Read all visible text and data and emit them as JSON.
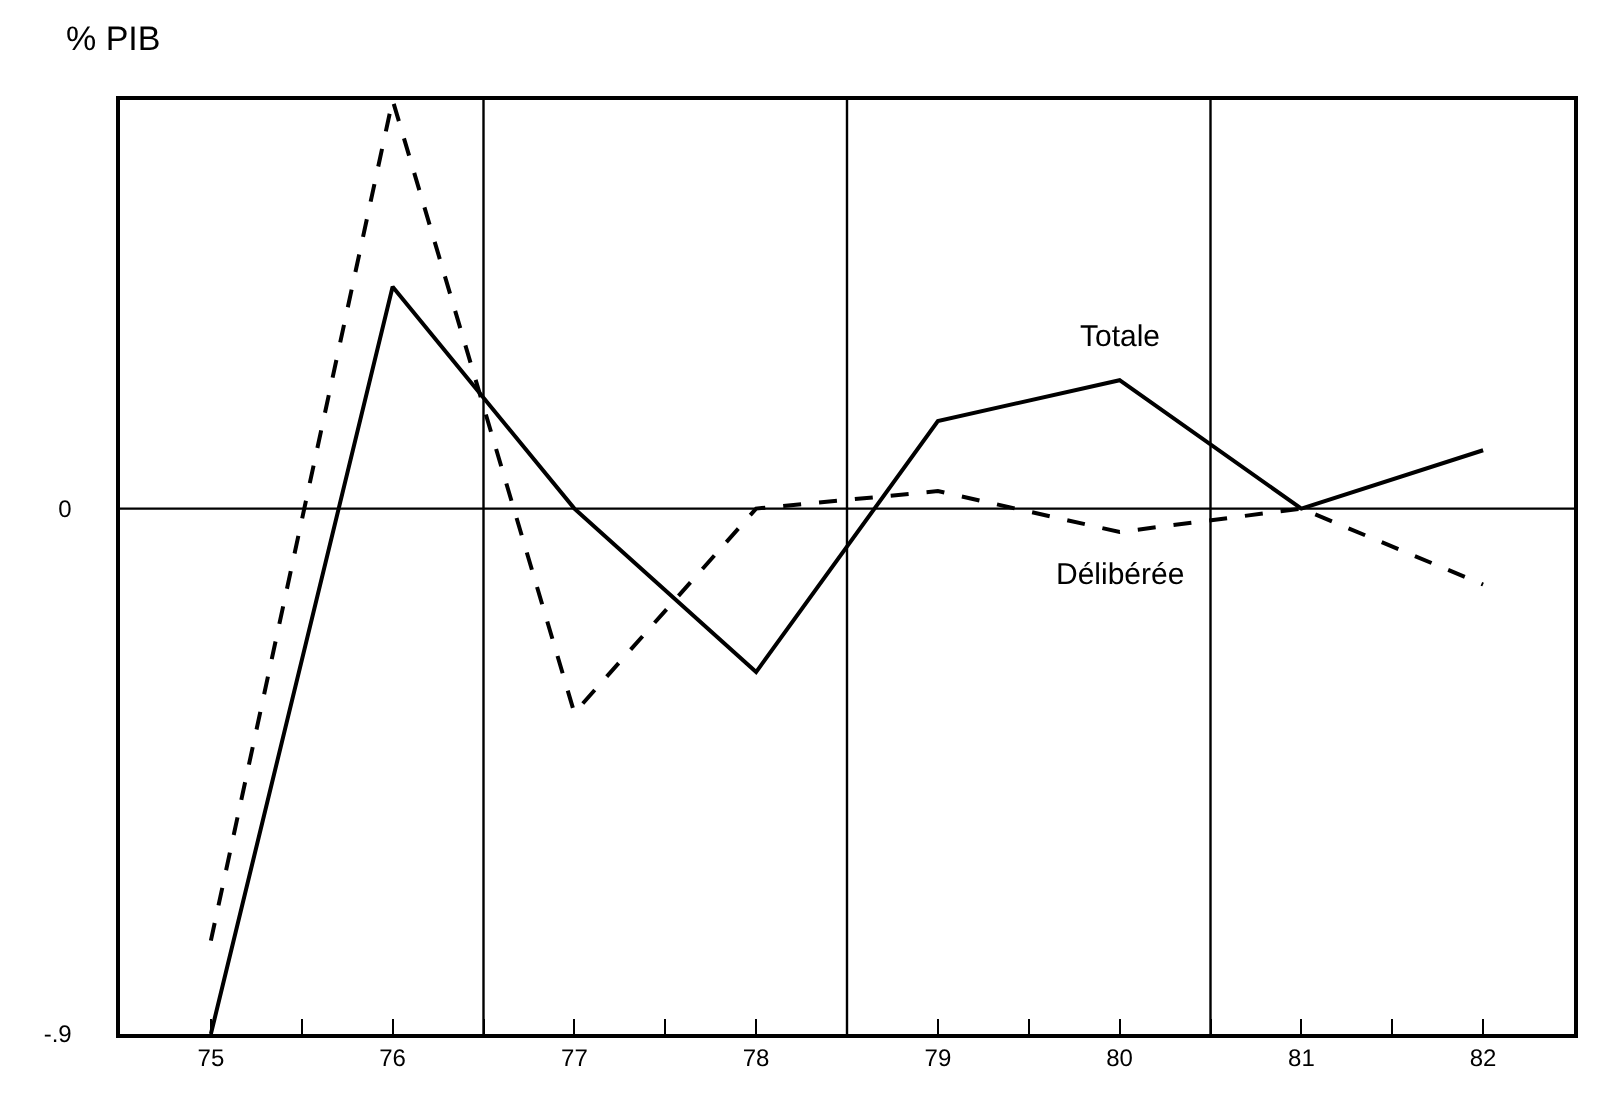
{
  "chart_data": {
    "type": "line",
    "ylabel": "% PIB",
    "x": [
      75,
      76,
      77,
      78,
      79,
      80,
      81,
      82
    ],
    "xlim": [
      74.5,
      82.5
    ],
    "xticks": [
      75,
      {
        "value": 75.5,
        "label": null
      },
      76,
      {
        "value": 76.5,
        "label": null
      },
      77,
      {
        "value": 77.5,
        "label": null
      },
      78,
      {
        "value": 78.5,
        "label": null
      },
      79,
      {
        "value": 79.5,
        "label": null
      },
      80,
      {
        "value": 80.5,
        "label": null
      },
      81,
      {
        "value": 81.5,
        "label": null
      },
      82
    ],
    "ylim": [
      -0.9,
      0.7
    ],
    "yticks": [
      0,
      {
        "value": -0.9,
        "label": "-.9"
      }
    ],
    "grid": false,
    "legend": false,
    "marker": "none",
    "ref_lines": [
      {
        "axis": "y",
        "value": 0,
        "color": "#000000"
      },
      {
        "axis": "x",
        "value": 76.5,
        "color": "#000000"
      },
      {
        "axis": "x",
        "value": 78.5,
        "color": "#000000"
      },
      {
        "axis": "x",
        "value": 80.5,
        "color": "#000000"
      }
    ],
    "series": [
      {
        "name": "Totale",
        "color": "#000000",
        "line_style": "solid",
        "values": [
          -0.9,
          0.38,
          0.0,
          -0.28,
          0.15,
          0.22,
          0.0,
          0.1
        ]
      },
      {
        "name": "Délibérée",
        "color": "#000000",
        "line_style": "dashed",
        "values": [
          -0.74,
          0.7,
          -0.35,
          0.0,
          0.03,
          -0.04,
          0.0,
          -0.13
        ]
      }
    ]
  }
}
